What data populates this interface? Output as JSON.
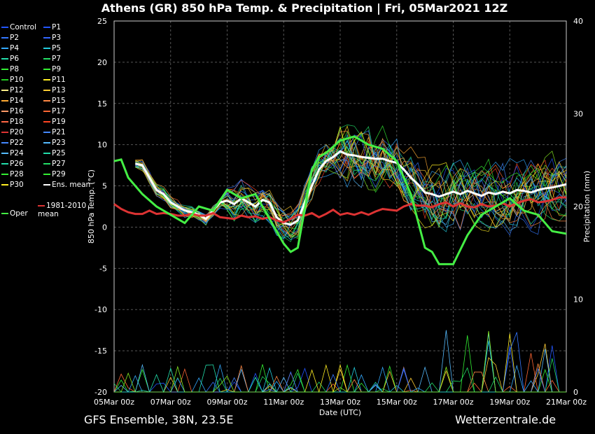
{
  "title": "Athens  (GR)  850 hPa Temp. & Precipitation | Fri, 05Mar2021 12Z",
  "footer_left": "GFS Ensemble, 38N, 23.5E",
  "footer_right": "Wetterzentrale.de",
  "chart_data": {
    "type": "line",
    "title": "Athens  (GR)  850 hPa Temp. & Precipitation | Fri, 05Mar2021 12Z",
    "xlabel": "Date (UTC)",
    "ylabel_left": "850 hPa Temp. (°C)",
    "ylabel_right": "Precipitation (mm)",
    "x_ticks": [
      "05Mar 00z",
      "07Mar 00z",
      "09Mar 00z",
      "11Mar 00z",
      "13Mar 00z",
      "15Mar 00z",
      "17Mar 00z",
      "19Mar 00z",
      "21Mar 00z"
    ],
    "y_left_ticks": [
      25,
      20,
      15,
      10,
      5,
      0,
      -5,
      -10,
      -15,
      -20
    ],
    "y_right_ticks": [
      40,
      30,
      20,
      10,
      0
    ],
    "ylim_left": [
      -20,
      25
    ],
    "ylim_right": [
      0,
      40
    ],
    "x_days": [
      0,
      16
    ],
    "grid": true,
    "legend_position": "left",
    "legend": [
      "Control",
      "P1",
      "P2",
      "P3",
      "P4",
      "P5",
      "P6",
      "P7",
      "P8",
      "P9",
      "P10",
      "P11",
      "P12",
      "P13",
      "P14",
      "P15",
      "P16",
      "P17",
      "P18",
      "P19",
      "P20",
      "P21",
      "P22",
      "P23",
      "P24",
      "P25",
      "P26",
      "P27",
      "P28",
      "P29",
      "P30",
      "Ens. mean",
      "Oper",
      "1981-2010 mean"
    ],
    "series": [
      {
        "name": "Ens. mean",
        "color": "#ffffff",
        "x": [
          0.75,
          1,
          1.25,
          1.5,
          1.75,
          2,
          2.25,
          2.5,
          2.75,
          3,
          3.25,
          3.5,
          3.75,
          4,
          4.25,
          4.5,
          4.75,
          5,
          5.25,
          5.5,
          5.75,
          6,
          6.25,
          6.5,
          6.75,
          7,
          7.25,
          7.5,
          7.75,
          8,
          8.25,
          8.5,
          8.75,
          9,
          9.25,
          9.5,
          9.75,
          10,
          10.25,
          10.5,
          10.75,
          11,
          11.25,
          11.5,
          11.75,
          12,
          12.25,
          12.5,
          12.75,
          13,
          13.25,
          13.5,
          13.75,
          14,
          14.25,
          14.5,
          14.75,
          15,
          15.25,
          15.5,
          15.75,
          16
        ],
        "y": [
          7.7,
          7.5,
          6.0,
          4.5,
          4.0,
          3.0,
          2.5,
          2.0,
          1.8,
          1.5,
          1.0,
          2.0,
          3.0,
          3.2,
          2.8,
          3.5,
          3.0,
          2.5,
          3.3,
          3.0,
          1.2,
          0.5,
          0.3,
          0.8,
          3.0,
          5.0,
          7.0,
          8.0,
          8.5,
          9.2,
          8.8,
          8.7,
          8.5,
          8.4,
          8.3,
          8.3,
          8.0,
          7.8,
          7.0,
          6.0,
          5.2,
          4.2,
          4.0,
          3.7,
          4.0,
          4.3,
          4.0,
          4.4,
          4.1,
          3.8,
          4.2,
          4.0,
          4.3,
          4.1,
          4.5,
          4.4,
          4.2,
          4.5,
          4.7,
          4.8,
          5.0,
          5.2
        ]
      },
      {
        "name": "1981-2010 mean",
        "color": "#dd3333",
        "x": [
          0,
          0.25,
          0.5,
          0.75,
          1,
          1.25,
          1.5,
          1.75,
          2,
          2.25,
          2.5,
          2.75,
          3,
          3.25,
          3.5,
          3.75,
          4,
          4.25,
          4.5,
          4.75,
          5,
          5.25,
          5.5,
          5.75,
          6,
          6.25,
          6.5,
          6.75,
          7,
          7.25,
          7.5,
          7.75,
          8,
          8.25,
          8.5,
          8.75,
          9,
          9.25,
          9.5,
          9.75,
          10,
          10.25,
          10.5,
          10.75,
          11,
          11.25,
          11.5,
          11.75,
          12,
          12.25,
          12.5,
          12.75,
          13,
          13.25,
          13.5,
          13.75,
          14,
          14.25,
          14.5,
          14.75,
          15,
          15.25,
          15.5,
          15.75,
          16
        ],
        "y": [
          2.8,
          2.2,
          1.8,
          1.6,
          1.6,
          2.0,
          1.6,
          1.7,
          1.6,
          1.4,
          1.4,
          1.6,
          1.4,
          1.4,
          1.7,
          1.2,
          1.1,
          1.0,
          1.4,
          1.2,
          1.3,
          1.0,
          1.2,
          0.8,
          0.6,
          1.0,
          1.5,
          1.4,
          1.7,
          1.2,
          1.6,
          2.1,
          1.5,
          1.7,
          1.5,
          1.8,
          1.5,
          1.9,
          2.2,
          2.1,
          2.0,
          2.5,
          2.8,
          2.6,
          2.6,
          2.4,
          2.8,
          3.0,
          2.5,
          2.9,
          2.5,
          2.4,
          2.8,
          2.5,
          2.6,
          2.9,
          2.5,
          2.9,
          3.2,
          3.4,
          3.0,
          3.1,
          3.3,
          3.6,
          3.6
        ]
      },
      {
        "name": "Oper",
        "color": "#44ee44",
        "x": [
          0,
          0.25,
          0.5,
          1,
          1.5,
          2,
          2.5,
          3,
          3.5,
          4,
          4.5,
          5,
          5.5,
          6,
          6.25,
          6.5,
          7,
          7.25,
          7.5,
          8,
          8.5,
          9,
          9.5,
          10,
          10.5,
          11,
          11.25,
          11.5,
          11.75,
          12,
          12.5,
          13,
          13.5,
          14,
          14.5,
          15,
          15.5,
          16
        ],
        "y": [
          8.0,
          8.2,
          6.0,
          4.0,
          2.5,
          1.5,
          0.5,
          2.5,
          2.0,
          4.5,
          3.5,
          4.0,
          1.0,
          -2.0,
          -3.0,
          -2.5,
          7.0,
          8.5,
          9.0,
          10.5,
          11.0,
          10.0,
          9.5,
          8.0,
          4.0,
          -2.5,
          -3.0,
          -4.5,
          -4.5,
          -4.5,
          -1.0,
          1.5,
          2.5,
          3.5,
          2.0,
          1.5,
          -0.5,
          -0.8
        ]
      }
    ]
  }
}
